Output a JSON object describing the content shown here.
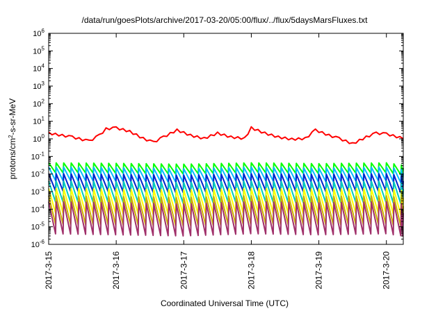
{
  "chart_data": {
    "type": "line",
    "title": "/data/run/goesPlots/archive/2017-03-20/05:00/flux/../flux/5daysMarsFluxes.txt",
    "xlabel": "Coordinated Universal Time (UTC)",
    "ylabel_main": "protons/cm",
    "ylabel_sup": "2",
    "ylabel_rest": "-s-sr-MeV",
    "yscale": "log",
    "ylim_exp": [
      -6,
      6
    ],
    "ytick_base": "10",
    "yticks_exp": [
      -6,
      -5,
      -4,
      -3,
      -2,
      -1,
      0,
      1,
      2,
      3,
      4,
      5,
      6
    ],
    "xlim_days": [
      0,
      5.25
    ],
    "xtick_labels": [
      "2017-3-15",
      "2017-3-16",
      "2017-3-17",
      "2017-3-18",
      "2017-3-19",
      "2017-3-20"
    ],
    "xtick_days": [
      0,
      1,
      2,
      3,
      4,
      5
    ],
    "grid": false,
    "series": [
      {
        "color": "#ff0000",
        "x": [
          0,
          0.35,
          0.6,
          0.75,
          0.85,
          1.0,
          1.2,
          1.4,
          1.55,
          1.7,
          1.9,
          2.1,
          2.3,
          2.5,
          2.7,
          2.9,
          3.0,
          3.2,
          3.4,
          3.6,
          3.8,
          3.95,
          4.15,
          4.3,
          4.5,
          4.7,
          4.85,
          5.0,
          5.25
        ],
        "y": [
          2.0,
          1.2,
          0.7,
          1.5,
          3.5,
          4.0,
          2.5,
          1.0,
          0.6,
          1.2,
          3.0,
          1.5,
          1.0,
          2.0,
          1.2,
          1.0,
          4.0,
          2.0,
          1.2,
          0.9,
          1.0,
          3.0,
          1.5,
          1.0,
          0.5,
          1.2,
          2.0,
          1.8,
          1.0
        ]
      },
      {
        "color": "#00ff00",
        "x": [
          0,
          1,
          2,
          3,
          4,
          5,
          5.25
        ],
        "y": [
          0.03,
          0.028,
          0.025,
          0.03,
          0.027,
          0.03,
          0.022
        ]
      },
      {
        "color": "#00bbff",
        "x": [
          0,
          1,
          2,
          3,
          4,
          5,
          5.25
        ],
        "y": [
          0.015,
          0.014,
          0.012,
          0.015,
          0.013,
          0.015,
          0.011
        ]
      },
      {
        "color": "#0022cc",
        "x": [
          0,
          1,
          2,
          3,
          4,
          5,
          5.25
        ],
        "y": [
          0.0055,
          0.005,
          0.0045,
          0.0055,
          0.005,
          0.0055,
          0.004
        ]
      },
      {
        "color": "#00ccbb",
        "x": [
          0,
          1,
          2,
          3,
          4,
          5,
          5.25
        ],
        "y": [
          0.0018,
          0.0017,
          0.0015,
          0.0018,
          0.0016,
          0.0018,
          0.0014
        ]
      },
      {
        "color": "#ffff00",
        "x": [
          0,
          1,
          2,
          3,
          4,
          5,
          5.25
        ],
        "y": [
          0.0006,
          0.00055,
          0.0005,
          0.0006,
          0.00055,
          0.0006,
          0.00045
        ]
      },
      {
        "color": "#ccb000",
        "x": [
          0,
          1,
          2,
          3,
          4,
          5,
          5.25
        ],
        "y": [
          0.0002,
          0.00018,
          0.00016,
          0.0002,
          0.00018,
          0.0002,
          0.00015
        ]
      },
      {
        "color": "#a0306a",
        "x": [
          0,
          1,
          2,
          3,
          4,
          5,
          5.25
        ],
        "y": [
          8e-05,
          7e-05,
          6e-05,
          8e-05,
          7e-05,
          8e-05,
          6e-05
        ]
      }
    ]
  }
}
